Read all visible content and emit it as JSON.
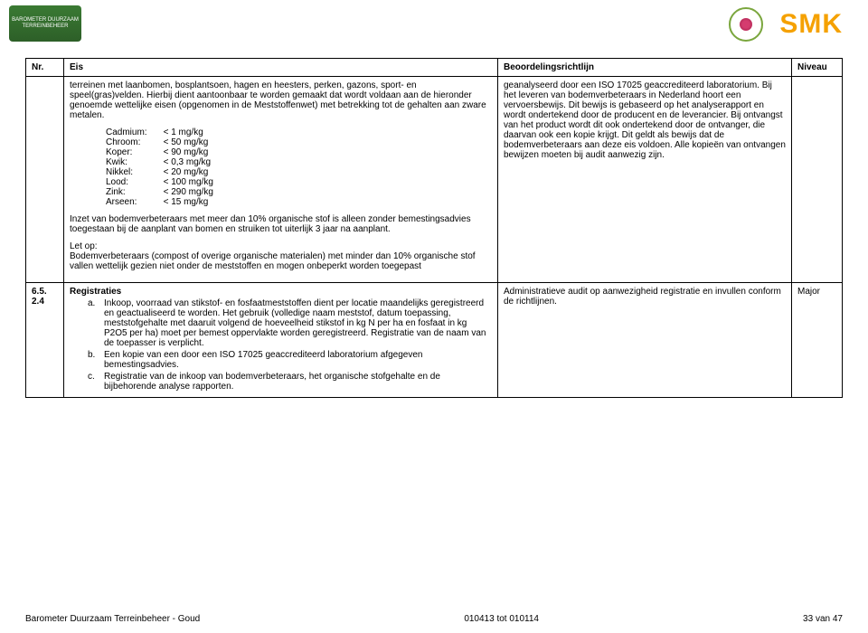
{
  "logos": {
    "barometer_text": "BAROMETER DUURZAAM TERREINBEHEER",
    "smk_text": "SMK"
  },
  "table": {
    "headers": {
      "nr": "Nr.",
      "eis": "Eis",
      "beoord": "Beoordelingsrichtlijn",
      "niveau": "Niveau"
    },
    "row1": {
      "eis_p1": "terreinen met laanbomen, bosplantsoen, hagen en heesters, perken, gazons, sport- en speel(gras)velden. Hierbij dient aantoonbaar te worden gemaakt dat wordt voldaan aan de hieronder genoemde wettelijke eisen (opgenomen in de Meststoffenwet) met betrekking tot de gehalten aan zware metalen.",
      "limits": [
        {
          "el": "Cadmium:",
          "val": "< 1 mg/kg"
        },
        {
          "el": "Chroom:",
          "val": "< 50 mg/kg"
        },
        {
          "el": "Koper:",
          "val": "< 90 mg/kg"
        },
        {
          "el": "Kwik:",
          "val": "< 0,3 mg/kg"
        },
        {
          "el": "Nikkel:",
          "val": "< 20 mg/kg"
        },
        {
          "el": "Lood:",
          "val": "< 100 mg/kg"
        },
        {
          "el": "Zink:",
          "val": "< 290 mg/kg"
        },
        {
          "el": "Arseen:",
          "val": "< 15 mg/kg"
        }
      ],
      "eis_p2": "Inzet van bodemverbeteraars met meer dan 10% organische stof is alleen zonder bemestingsadvies toegestaan bij de aanplant van bomen en struiken tot uiterlijk 3 jaar na aanplant.",
      "eis_p3_label": "Let op:",
      "eis_p3": "Bodemverbeteraars (compost of overige organische materialen) met minder dan 10% organische stof vallen wettelijk gezien niet onder de meststoffen en mogen onbeperkt worden toegepast",
      "beoord": "geanalyseerd door een ISO 17025 geaccrediteerd laboratorium. Bij het leveren van bodemverbeteraars in Nederland hoort een vervoersbewijs. Dit bewijs is gebaseerd op het analyserapport en wordt ondertekend door de producent en de leverancier. Bij ontvangst van het product wordt dit ook ondertekend door de ontvanger, die daarvan ook een kopie krijgt. Dit geldt als bewijs dat de bodemverbeteraars aan deze eis voldoen. Alle kopieën van ontvangen bewijzen moeten bij audit aanwezig zijn."
    },
    "row2": {
      "nr": "6.5.\n2.4",
      "title": "Registraties",
      "items": {
        "a": "Inkoop, voorraad van stikstof- en fosfaatmeststoffen dient per locatie maandelijks geregistreerd en geactualiseerd te worden. Het gebruik (volledige naam meststof, datum toepassing, meststofgehalte met daaruit volgend de hoeveelheid stikstof in kg N per ha en fosfaat in kg P2O5 per ha) moet per  bemest oppervlakte worden geregistreerd. Registratie van de naam van de toepasser is verplicht.",
        "b": "Een kopie van een door een ISO 17025 geaccrediteerd laboratorium afgegeven bemestingsadvies.",
        "c": "Registratie van de inkoop van bodemverbeteraars, het organische stofgehalte en de bijbehorende analyse rapporten."
      },
      "beoord": "Administratieve audit op aanwezigheid registratie en invullen conform de richtlijnen.",
      "niveau": "Major"
    }
  },
  "footer": {
    "left": "Barometer Duurzaam Terreinbeheer - Goud",
    "center": "010413 tot 010114",
    "right": "33 van 47"
  }
}
